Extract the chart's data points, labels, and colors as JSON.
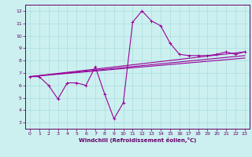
{
  "series": [
    {
      "x": [
        0,
        1,
        2,
        3,
        4,
        5,
        6,
        7,
        8,
        9,
        10,
        11,
        12,
        13,
        14,
        15,
        16,
        17,
        18,
        19,
        20,
        21,
        22,
        23
      ],
      "y": [
        6.7,
        6.7,
        6.0,
        4.9,
        6.2,
        6.2,
        6.0,
        7.5,
        5.3,
        3.3,
        4.6,
        11.1,
        12.0,
        11.2,
        10.8,
        9.4,
        8.5,
        8.4,
        8.4,
        8.4,
        8.5,
        8.7,
        8.5,
        8.7
      ]
    },
    {
      "x": [
        0,
        23
      ],
      "y": [
        6.7,
        8.7
      ]
    },
    {
      "x": [
        0,
        23
      ],
      "y": [
        6.7,
        8.4
      ]
    },
    {
      "x": [
        0,
        23
      ],
      "y": [
        6.7,
        8.2
      ]
    }
  ],
  "line_color": "#990099",
  "marker": "+",
  "marker_size": 3,
  "bg_color": "#CCF0F0",
  "grid_color": "#AADDDD",
  "axis_color": "#660066",
  "xlabel": "Windchill (Refroidissement éolien,°C)",
  "xlim": [
    -0.5,
    23.5
  ],
  "ylim": [
    2.5,
    12.5
  ],
  "yticks": [
    3,
    4,
    5,
    6,
    7,
    8,
    9,
    10,
    11,
    12
  ],
  "xticks": [
    0,
    1,
    2,
    3,
    4,
    5,
    6,
    7,
    8,
    9,
    10,
    11,
    12,
    13,
    14,
    15,
    16,
    17,
    18,
    19,
    20,
    21,
    22,
    23
  ],
  "linewidth": 0.8
}
